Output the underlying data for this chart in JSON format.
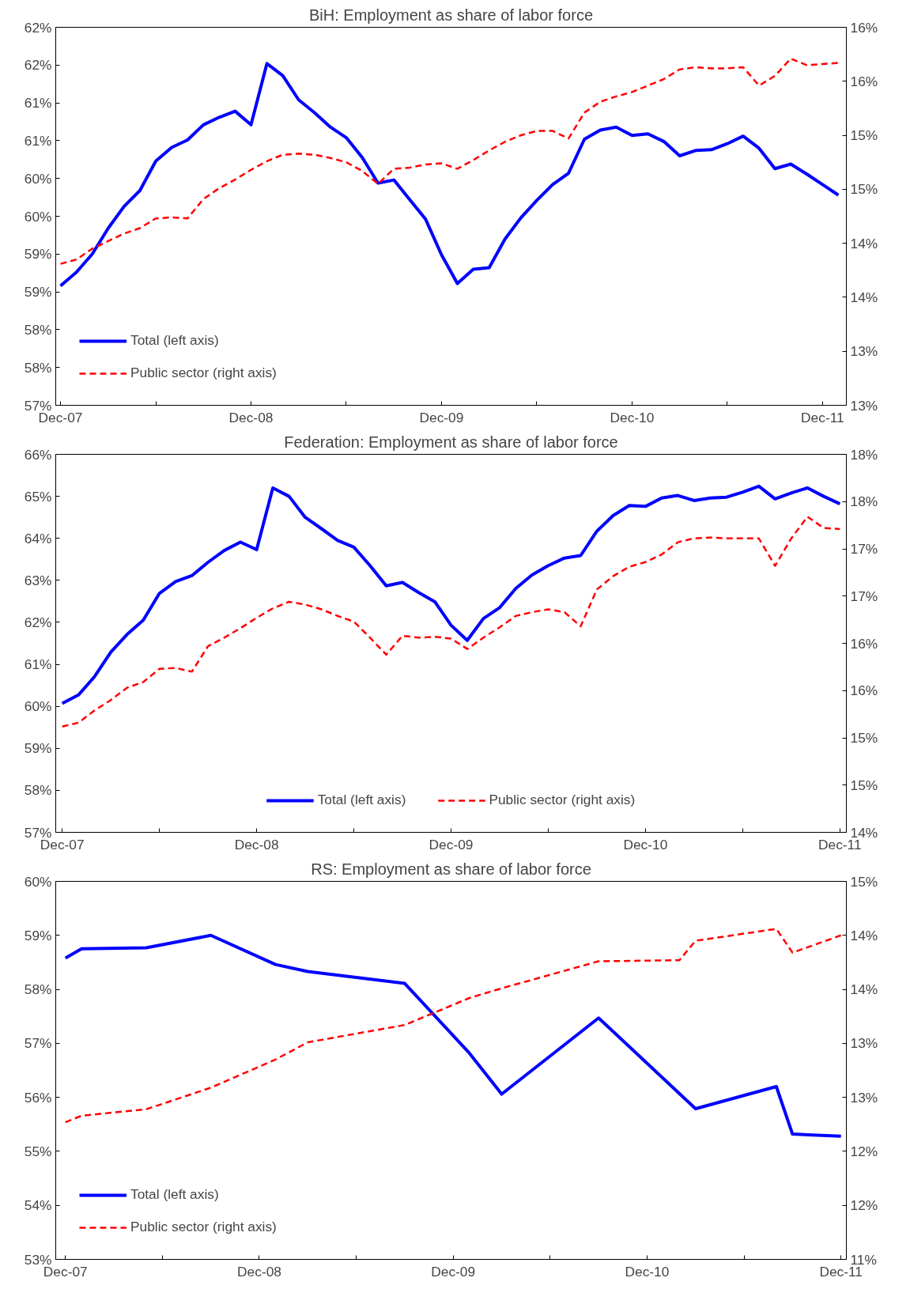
{
  "chart_data": [
    {
      "type": "line",
      "title": "BiH: Employment as share of labor force",
      "legend": "bottom left",
      "grid": false,
      "x": [
        "2007-12",
        "2008-01",
        "2008-02",
        "2008-03",
        "2008-04",
        "2008-05",
        "2008-06",
        "2008-07",
        "2008-08",
        "2008-09",
        "2008-10",
        "2008-11",
        "2008-12",
        "2009-01",
        "2009-02",
        "2009-03",
        "2009-04",
        "2009-05",
        "2009-06",
        "2009-07",
        "2009-08",
        "2009-09",
        "2009-10",
        "2009-11",
        "2009-12",
        "2010-01",
        "2010-02",
        "2010-03",
        "2010-04",
        "2010-05",
        "2010-06",
        "2010-07",
        "2010-08",
        "2010-09",
        "2010-10",
        "2010-11",
        "2010-12",
        "2011-01",
        "2011-02",
        "2011-03",
        "2011-04",
        "2011-05",
        "2011-06",
        "2011-07",
        "2011-08",
        "2011-09",
        "2011-10",
        "2011-11",
        "2011-12",
        "2012-01"
      ],
      "xlim": [
        "2007-11-22",
        "2012-01-16"
      ],
      "xticks": [
        {
          "value": "2007-12",
          "label": "Dec-07"
        },
        {
          "value": "2008-06",
          "label": null
        },
        {
          "value": "2008-12",
          "label": "Dec-08"
        },
        {
          "value": "2009-06",
          "label": null
        },
        {
          "value": "2009-12",
          "label": "Dec-09"
        },
        {
          "value": "2010-06",
          "label": null
        },
        {
          "value": "2010-12",
          "label": "Dec-10"
        },
        {
          "value": "2011-06",
          "label": null
        },
        {
          "value": "2011-12",
          "label": "Dec-11"
        }
      ],
      "ylim": [
        57,
        62
      ],
      "yticks": [
        {
          "value": 57,
          "label": "57%"
        },
        {
          "value": 57.5,
          "label": "58%"
        },
        {
          "value": 58,
          "label": "58%"
        },
        {
          "value": 58.5,
          "label": "59%"
        },
        {
          "value": 59,
          "label": "59%"
        },
        {
          "value": 59.5,
          "label": "60%"
        },
        {
          "value": 60,
          "label": "60%"
        },
        {
          "value": 60.5,
          "label": "61%"
        },
        {
          "value": 61,
          "label": "61%"
        },
        {
          "value": 61.5,
          "label": "62%"
        },
        {
          "value": 62,
          "label": "62%"
        }
      ],
      "y2lim": [
        12.5,
        16
      ],
      "y2ticks": [
        {
          "value": 12.5,
          "label": "13%"
        },
        {
          "value": 13,
          "label": "13%"
        },
        {
          "value": 13.5,
          "label": "14%"
        },
        {
          "value": 14,
          "label": "14%"
        },
        {
          "value": 14.5,
          "label": "15%"
        },
        {
          "value": 15,
          "label": "15%"
        },
        {
          "value": 15.5,
          "label": "16%"
        },
        {
          "value": 16,
          "label": "16%"
        }
      ],
      "series": [
        {
          "name": "Total (left axis)",
          "color": "#0000ff",
          "line_style": "solid",
          "values": [
            58.58,
            58.76,
            59.0,
            59.34,
            59.63,
            59.84,
            60.23,
            60.41,
            60.51,
            60.71,
            60.81,
            60.89,
            60.71,
            61.52,
            61.36,
            61.04,
            60.87,
            60.68,
            60.54,
            60.28,
            59.94,
            59.98,
            59.72,
            59.46,
            58.99,
            58.61,
            58.8,
            58.82,
            59.2,
            59.48,
            59.71,
            59.92,
            60.07,
            60.52,
            60.64,
            60.68,
            60.57,
            60.59,
            60.49,
            60.3,
            60.37,
            60.38,
            60.46,
            60.56,
            60.4,
            60.13,
            60.19,
            60.06,
            59.92,
            59.78
          ]
        },
        {
          "name": "Public sector (right axis)",
          "color": "#ff0000",
          "line_style": "dashed",
          "axis": "y2",
          "values": [
            13.81,
            13.85,
            13.95,
            14.02,
            14.09,
            14.14,
            14.23,
            14.24,
            14.23,
            14.41,
            14.51,
            14.59,
            14.68,
            14.76,
            14.82,
            14.83,
            14.82,
            14.79,
            14.75,
            14.67,
            14.55,
            14.69,
            14.7,
            14.73,
            14.74,
            14.69,
            14.77,
            14.86,
            14.94,
            15.0,
            15.04,
            15.04,
            14.97,
            15.21,
            15.31,
            15.36,
            15.4,
            15.46,
            15.52,
            15.61,
            15.63,
            15.62,
            15.62,
            15.63,
            15.46,
            15.55,
            15.71,
            15.65,
            15.66,
            15.67
          ]
        }
      ]
    },
    {
      "type": "line",
      "title": "Federation: Employment as share of labor force",
      "legend": "bottom",
      "grid": false,
      "x": [
        "2007-12",
        "2008-01",
        "2008-02",
        "2008-03",
        "2008-04",
        "2008-05",
        "2008-06",
        "2008-07",
        "2008-08",
        "2008-09",
        "2008-10",
        "2008-11",
        "2008-12",
        "2009-01",
        "2009-02",
        "2009-03",
        "2009-04",
        "2009-05",
        "2009-06",
        "2009-07",
        "2009-08",
        "2009-09",
        "2009-10",
        "2009-11",
        "2009-12",
        "2010-01",
        "2010-02",
        "2010-03",
        "2010-04",
        "2010-05",
        "2010-06",
        "2010-07",
        "2010-08",
        "2010-09",
        "2010-10",
        "2010-11",
        "2010-12",
        "2011-01",
        "2011-02",
        "2011-03",
        "2011-04",
        "2011-05",
        "2011-06",
        "2011-07",
        "2011-08",
        "2011-09",
        "2011-10",
        "2011-11",
        "2011-12"
      ],
      "xlim": [
        "2007-11-19",
        "2011-12-13"
      ],
      "xticks": [
        {
          "value": "2007-12",
          "label": "Dec-07"
        },
        {
          "value": "2008-06",
          "label": null
        },
        {
          "value": "2008-12",
          "label": "Dec-08"
        },
        {
          "value": "2009-06",
          "label": null
        },
        {
          "value": "2009-12",
          "label": "Dec-09"
        },
        {
          "value": "2010-06",
          "label": null
        },
        {
          "value": "2010-12",
          "label": "Dec-10"
        },
        {
          "value": "2011-06",
          "label": null
        },
        {
          "value": "2011-12",
          "label": "Dec-11"
        }
      ],
      "ylim": [
        57,
        66
      ],
      "yticks": [
        {
          "value": 57,
          "label": "57%"
        },
        {
          "value": 58,
          "label": "58%"
        },
        {
          "value": 59,
          "label": "59%"
        },
        {
          "value": 60,
          "label": "60%"
        },
        {
          "value": 61,
          "label": "61%"
        },
        {
          "value": 62,
          "label": "62%"
        },
        {
          "value": 63,
          "label": "63%"
        },
        {
          "value": 64,
          "label": "64%"
        },
        {
          "value": 65,
          "label": "65%"
        },
        {
          "value": 66,
          "label": "66%"
        }
      ],
      "y2lim": [
        14,
        18
      ],
      "y2ticks": [
        {
          "value": 14,
          "label": "14%"
        },
        {
          "value": 14.5,
          "label": "15%"
        },
        {
          "value": 15,
          "label": "15%"
        },
        {
          "value": 15.5,
          "label": "16%"
        },
        {
          "value": 16,
          "label": "16%"
        },
        {
          "value": 16.5,
          "label": "17%"
        },
        {
          "value": 17,
          "label": "17%"
        },
        {
          "value": 17.5,
          "label": "18%"
        },
        {
          "value": 18,
          "label": "18%"
        }
      ],
      "series": [
        {
          "name": "Total (left axis)",
          "color": "#0000ff",
          "line_style": "solid",
          "values": [
            60.07,
            60.27,
            60.71,
            61.29,
            61.71,
            62.05,
            62.69,
            62.97,
            63.11,
            63.43,
            63.71,
            63.91,
            63.73,
            65.2,
            65.0,
            64.5,
            64.23,
            63.95,
            63.79,
            63.35,
            62.87,
            62.95,
            62.71,
            62.49,
            61.93,
            61.57,
            62.09,
            62.35,
            62.81,
            63.13,
            63.35,
            63.53,
            63.59,
            64.17,
            64.54,
            64.78,
            64.76,
            64.96,
            65.02,
            64.9,
            64.96,
            64.98,
            65.1,
            65.24,
            64.94,
            65.08,
            65.2,
            65.0,
            64.82
          ]
        },
        {
          "name": "Public sector (right axis)",
          "color": "#ff0000",
          "line_style": "dashed",
          "axis": "y2",
          "values": [
            15.12,
            15.16,
            15.29,
            15.4,
            15.53,
            15.59,
            15.73,
            15.74,
            15.7,
            15.97,
            16.06,
            16.16,
            16.27,
            16.37,
            16.44,
            16.41,
            16.36,
            16.29,
            16.23,
            16.06,
            15.88,
            16.08,
            16.06,
            16.07,
            16.05,
            15.94,
            16.06,
            16.17,
            16.29,
            16.33,
            16.36,
            16.33,
            16.18,
            16.57,
            16.71,
            16.81,
            16.86,
            16.94,
            17.07,
            17.11,
            17.12,
            17.11,
            17.11,
            17.11,
            16.82,
            17.11,
            17.34,
            17.22,
            17.21
          ]
        }
      ]
    },
    {
      "type": "line",
      "title": "RS: Employment as share of labor force",
      "legend": "bottom left",
      "grid": false,
      "xlim": [
        "2007-11-13",
        "2011-12-11"
      ],
      "xticks": [
        {
          "value": "2007-12",
          "label": "Dec-07"
        },
        {
          "value": "2008-06",
          "label": null
        },
        {
          "value": "2008-12",
          "label": "Dec-08"
        },
        {
          "value": "2009-06",
          "label": null
        },
        {
          "value": "2009-12",
          "label": "Dec-09"
        },
        {
          "value": "2010-06",
          "label": null
        },
        {
          "value": "2010-12",
          "label": "Dec-10"
        },
        {
          "value": "2011-06",
          "label": null
        },
        {
          "value": "2011-12",
          "label": "Dec-11"
        }
      ],
      "ylim": [
        53,
        60
      ],
      "yticks": [
        {
          "value": 53,
          "label": "53%"
        },
        {
          "value": 54,
          "label": "54%"
        },
        {
          "value": 55,
          "label": "55%"
        },
        {
          "value": 56,
          "label": "56%"
        },
        {
          "value": 57,
          "label": "57%"
        },
        {
          "value": 58,
          "label": "58%"
        },
        {
          "value": 59,
          "label": "59%"
        },
        {
          "value": 60,
          "label": "60%"
        }
      ],
      "y2lim": [
        11,
        14.5
      ],
      "y2ticks": [
        {
          "value": 11,
          "label": "11%"
        },
        {
          "value": 11.5,
          "label": "12%"
        },
        {
          "value": 12,
          "label": "12%"
        },
        {
          "value": 12.5,
          "label": "13%"
        },
        {
          "value": 13,
          "label": "13%"
        },
        {
          "value": 13.5,
          "label": "14%"
        },
        {
          "value": 14,
          "label": "14%"
        },
        {
          "value": 14.5,
          "label": "15%"
        }
      ],
      "series": [
        {
          "name": "Total (left axis)",
          "color": "#0000ff",
          "line_style": "solid",
          "x": [
            "2007-12",
            "2008-01",
            "2008-05",
            "2008-09",
            "2009-01",
            "2009-03",
            "2009-09",
            "2010-01",
            "2010-03",
            "2010-09",
            "2011-03",
            "2011-08",
            "2011-09",
            "2011-12"
          ],
          "values": [
            58.58,
            58.75,
            58.77,
            59.0,
            58.46,
            58.33,
            58.11,
            56.82,
            56.06,
            57.47,
            55.79,
            56.2,
            55.32,
            55.28
          ]
        },
        {
          "name": "Public sector (right axis)",
          "color": "#ff0000",
          "line_style": "dashed",
          "axis": "y2",
          "x": [
            "2007-12",
            "2008-01",
            "2008-05",
            "2008-09",
            "2009-01",
            "2009-03",
            "2009-09",
            "2010-01",
            "2010-03",
            "2010-09",
            "2011-02",
            "2011-03",
            "2011-08",
            "2011-09",
            "2011-12"
          ],
          "values": [
            12.27,
            12.33,
            12.39,
            12.59,
            12.85,
            13.01,
            13.17,
            13.42,
            13.51,
            13.76,
            13.77,
            13.95,
            14.06,
            13.84,
            14.0
          ]
        }
      ]
    }
  ]
}
